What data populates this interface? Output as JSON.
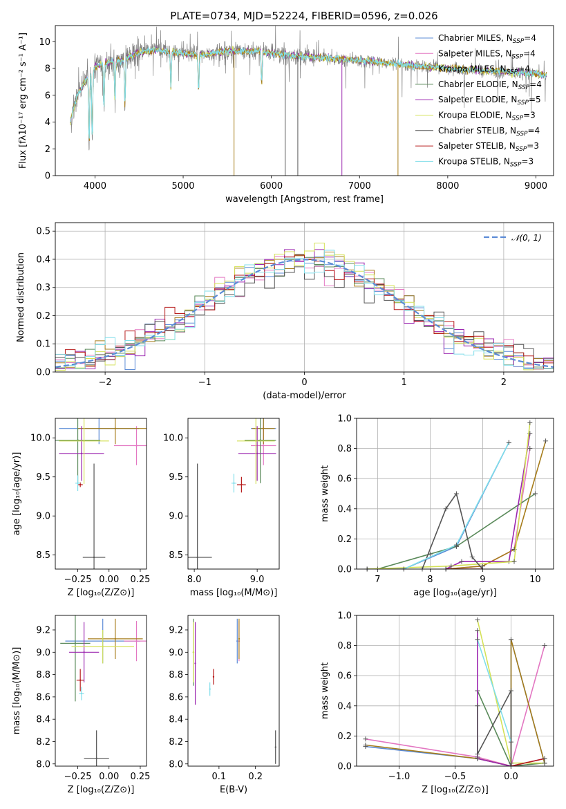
{
  "figure_title": "PLATE=0734, MJD=52224, FIBERID=0596, z=0.026",
  "models": [
    {
      "label": "Chabrier MILES, N",
      "sub": "SSP",
      "suffix": "=4",
      "color": "#5b8bd6"
    },
    {
      "label": "Salpeter MILES, N",
      "sub": "SSP",
      "suffix": "=4",
      "color": "#e377c2"
    },
    {
      "label": "Kroupa MILES, N",
      "sub": "SSP",
      "suffix": "=4",
      "color": "#a67c1a"
    },
    {
      "label": "Chabrier ELODIE, N",
      "sub": "SSP",
      "suffix": "=4",
      "color": "#5a8a5a"
    },
    {
      "label": "Salpeter ELODIE, N",
      "sub": "SSP",
      "suffix": "=5",
      "color": "#9c27b0"
    },
    {
      "label": "Kroupa ELODIE, N",
      "sub": "SSP",
      "suffix": "=3",
      "color": "#d4e157"
    },
    {
      "label": "Chabrier STELIB, N",
      "sub": "SSP",
      "suffix": "=4",
      "color": "#555555"
    },
    {
      "label": "Salpeter STELIB, N",
      "sub": "SSP",
      "suffix": "=3",
      "color": "#b71c1c"
    },
    {
      "label": "Kroupa STELIB, N",
      "sub": "SSP",
      "suffix": "=3",
      "color": "#80deea"
    }
  ],
  "chart_data": [
    {
      "id": "spectrum",
      "type": "line",
      "xlabel": "wavelength [Angstrom, rest frame]",
      "ylabel": "Flux [fλ10⁻¹⁷ erg cm⁻² s⁻¹ A⁻¹]",
      "xlim": [
        3550,
        9200
      ],
      "ylim": [
        0,
        11.2
      ],
      "xticks": [
        4000,
        5000,
        6000,
        7000,
        8000,
        9000
      ],
      "yticks": [
        0,
        2,
        4,
        6,
        8,
        10
      ],
      "data_line_color": "#808080",
      "model_color": "#80deea",
      "spectrum_shape": [
        [
          3720,
          4.0
        ],
        [
          3800,
          6.0
        ],
        [
          3900,
          7.2
        ],
        [
          4000,
          8.1
        ],
        [
          4100,
          8.4
        ],
        [
          4300,
          8.6
        ],
        [
          4500,
          9.2
        ],
        [
          4700,
          9.4
        ],
        [
          4900,
          9.2
        ],
        [
          5200,
          9.0
        ],
        [
          5500,
          9.3
        ],
        [
          5800,
          9.3
        ],
        [
          6200,
          9.0
        ],
        [
          6600,
          8.8
        ],
        [
          7000,
          8.6
        ],
        [
          7500,
          8.3
        ],
        [
          8000,
          8.0
        ],
        [
          8500,
          7.8
        ],
        [
          9000,
          7.6
        ],
        [
          9120,
          7.5
        ]
      ],
      "absorption_dips": [
        [
          3934,
          2.2
        ],
        [
          3969,
          2.5
        ],
        [
          4102,
          5.0
        ],
        [
          4227,
          5.5
        ],
        [
          4340,
          5.2
        ],
        [
          4861,
          6.5
        ],
        [
          5175,
          6.3
        ],
        [
          5890,
          6.8
        ]
      ],
      "sky_residual_drops": [
        5577,
        6157,
        6300,
        6800,
        7436
      ]
    },
    {
      "id": "residuals",
      "type": "area",
      "xlabel": "(data-model)/error",
      "ylabel": "Normed distribution",
      "xlim": [
        -2.5,
        2.5
      ],
      "ylim": [
        0,
        0.53
      ],
      "xticks": [
        -2,
        -1,
        0,
        1,
        2
      ],
      "yticks": [
        0,
        0.1,
        0.2,
        0.3,
        0.4,
        0.5
      ],
      "bin_width": 0.1,
      "histogram_type": "step",
      "legend": "𝒩(0, 1)",
      "reference_line_color": "#5b8bd6",
      "reference": "normal(0,1)"
    },
    {
      "id": "age_vs_z",
      "type": "scatter",
      "xlabel": "Z [log₁₀(Z/Z⊙)]",
      "ylabel": "age  [log₁₀(age/yr)]",
      "xlim": [
        -0.43,
        0.3
      ],
      "ylim": [
        8.32,
        10.25
      ],
      "xticks": [
        -0.25,
        0.0,
        0.25
      ],
      "yticks": [
        8.5,
        9.0,
        9.5,
        10.0
      ],
      "points": [
        {
          "m": 0,
          "x": -0.08,
          "y": 10.12,
          "xerr": 0.32,
          "yerr": 0.2
        },
        {
          "m": 1,
          "x": 0.22,
          "y": 9.9,
          "xerr": 0.18,
          "yerr": 0.25
        },
        {
          "m": 2,
          "x": 0.05,
          "y": 10.12,
          "xerr": 0.3,
          "yerr": 0.2
        },
        {
          "m": 3,
          "x": -0.25,
          "y": 9.97,
          "xerr": 0.18,
          "yerr": 0.55
        },
        {
          "m": 4,
          "x": -0.22,
          "y": 9.8,
          "xerr": 0.18,
          "yerr": 0.35
        },
        {
          "m": 5,
          "x": -0.2,
          "y": 9.96,
          "xerr": 0.2,
          "yerr": 0.55
        },
        {
          "m": 6,
          "x": -0.12,
          "y": 8.47,
          "xerr": 0.09,
          "yerr": 1.2
        },
        {
          "m": 7,
          "x": -0.23,
          "y": 9.4,
          "xerr": 0.02,
          "yerr": 0.03
        },
        {
          "m": 8,
          "x": -0.25,
          "y": 9.42,
          "xerr": 0.02,
          "yerr": 0.1
        }
      ]
    },
    {
      "id": "age_vs_mass",
      "type": "scatter",
      "xlabel": "mass [log₁₀(M/M⊙)]",
      "xlim": [
        7.9,
        9.35
      ],
      "ylim": [
        8.32,
        10.25
      ],
      "xticks": [
        8.0,
        9.0
      ],
      "yticks": [
        8.5,
        9.0,
        9.5,
        10.0
      ],
      "points": [
        {
          "m": 0,
          "x": 9.1,
          "y": 10.12,
          "xerr": 0.2,
          "yerr": 0.2
        },
        {
          "m": 1,
          "x": 9.1,
          "y": 9.9,
          "xerr": 0.2,
          "yerr": 0.25
        },
        {
          "m": 2,
          "x": 9.1,
          "y": 10.12,
          "xerr": 0.18,
          "yerr": 0.2
        },
        {
          "m": 3,
          "x": 9.05,
          "y": 9.97,
          "xerr": 0.25,
          "yerr": 0.55
        },
        {
          "m": 4,
          "x": 9.0,
          "y": 9.8,
          "xerr": 0.3,
          "yerr": 0.35
        },
        {
          "m": 5,
          "x": 8.98,
          "y": 9.96,
          "xerr": 0.3,
          "yerr": 0.55
        },
        {
          "m": 6,
          "x": 8.05,
          "y": 8.47,
          "xerr": 0.23,
          "yerr": 1.2
        },
        {
          "m": 7,
          "x": 8.75,
          "y": 9.4,
          "xerr": 0.07,
          "yerr": 0.1
        },
        {
          "m": 8,
          "x": 8.63,
          "y": 9.42,
          "xerr": 0.04,
          "yerr": 0.12
        }
      ]
    },
    {
      "id": "mass_weight_vs_age",
      "type": "line",
      "xlabel": "age  [log₁₀(age/yr)]",
      "ylabel": "mass weight",
      "xlim": [
        6.6,
        10.35
      ],
      "ylim": [
        0,
        1.0
      ],
      "xticks": [
        7,
        8,
        9,
        10
      ],
      "yticks": [
        0,
        0.2,
        0.4,
        0.6,
        0.8,
        1.0
      ],
      "series": [
        {
          "m": 0,
          "points": [
            [
              6.8,
              0.0
            ],
            [
              7.5,
              0.0
            ],
            [
              8.5,
              0.15
            ],
            [
              9.5,
              0.84
            ]
          ]
        },
        {
          "m": 1,
          "points": [
            [
              8.3,
              0.0
            ],
            [
              9.0,
              0.02
            ],
            [
              9.6,
              0.13
            ],
            [
              9.9,
              0.8
            ]
          ]
        },
        {
          "m": 2,
          "points": [
            [
              8.3,
              0.0
            ],
            [
              9.0,
              0.02
            ],
            [
              9.6,
              0.13
            ],
            [
              10.2,
              0.85
            ]
          ]
        },
        {
          "m": 3,
          "points": [
            [
              7.0,
              0.0
            ],
            [
              8.0,
              0.1
            ],
            [
              8.5,
              0.15
            ],
            [
              10.0,
              0.5
            ]
          ]
        },
        {
          "m": 4,
          "points": [
            [
              8.3,
              0.0
            ],
            [
              8.6,
              0.05
            ],
            [
              9.5,
              0.05
            ],
            [
              9.9,
              0.9
            ]
          ]
        },
        {
          "m": 5,
          "points": [
            [
              6.8,
              0.0
            ],
            [
              8.4,
              0.02
            ],
            [
              9.6,
              0.05
            ],
            [
              9.9,
              0.97
            ]
          ]
        },
        {
          "m": 6,
          "points": [
            [
              7.85,
              0.0
            ],
            [
              8.3,
              0.4
            ],
            [
              8.5,
              0.5
            ],
            [
              8.8,
              0.08
            ],
            [
              9.0,
              0.0
            ]
          ]
        },
        {
          "m": 7,
          "points": [
            [
              8.3,
              0.0
            ],
            [
              9.0,
              0.0
            ]
          ]
        },
        {
          "m": 8,
          "points": [
            [
              7.5,
              0.0
            ],
            [
              8.5,
              0.16
            ],
            [
              9.5,
              0.84
            ]
          ]
        }
      ]
    },
    {
      "id": "mass_vs_z",
      "type": "scatter",
      "xlabel": "Z [log₁₀(Z/Z⊙)]",
      "ylabel": "mass [log₁₀(M/M⊙)]",
      "xlim": [
        -0.43,
        0.3
      ],
      "ylim": [
        7.98,
        9.33
      ],
      "xticks": [
        -0.25,
        0.0,
        0.25
      ],
      "yticks": [
        8.0,
        8.2,
        8.4,
        8.6,
        8.8,
        9.0,
        9.2
      ],
      "points": [
        {
          "m": 0,
          "x": -0.05,
          "y": 9.1,
          "xerr": 0.3,
          "yerr": 0.2
        },
        {
          "m": 1,
          "x": 0.22,
          "y": 9.1,
          "xerr": 0.1,
          "yerr": 0.18
        },
        {
          "m": 2,
          "x": 0.05,
          "y": 9.12,
          "xerr": 0.22,
          "yerr": 0.18
        },
        {
          "m": 3,
          "x": -0.27,
          "y": 9.08,
          "xerr": 0.12,
          "yerr": 0.52
        },
        {
          "m": 4,
          "x": -0.2,
          "y": 9.0,
          "xerr": 0.12,
          "yerr": 0.27
        },
        {
          "m": 5,
          "x": -0.05,
          "y": 9.05,
          "xerr": 0.25,
          "yerr": 0.15
        },
        {
          "m": 6,
          "x": -0.1,
          "y": 8.05,
          "xerr": 0.1,
          "yerr": 0.25
        },
        {
          "m": 7,
          "x": -0.23,
          "y": 8.75,
          "xerr": 0.03,
          "yerr": 0.1
        },
        {
          "m": 8,
          "x": -0.22,
          "y": 8.63,
          "xerr": 0.02,
          "yerr": 0.06
        }
      ]
    },
    {
      "id": "mass_vs_ebv",
      "type": "scatter",
      "xlabel": "E(B-V)",
      "xlim": [
        0.015,
        0.265
      ],
      "ylim": [
        7.98,
        9.33
      ],
      "xticks": [
        0.1,
        0.2
      ],
      "yticks": [
        8.0,
        8.2,
        8.4,
        8.6,
        8.8,
        9.0,
        9.2
      ],
      "points": [
        {
          "m": 0,
          "x": 0.15,
          "y": 9.1,
          "yerr": 0.2
        },
        {
          "m": 1,
          "x": 0.155,
          "y": 9.1,
          "yerr": 0.18
        },
        {
          "m": 2,
          "x": 0.155,
          "y": 9.12,
          "yerr": 0.18
        },
        {
          "m": 3,
          "x": 0.03,
          "y": 9.0,
          "yerr": 0.3
        },
        {
          "m": 4,
          "x": 0.035,
          "y": 8.9,
          "yerr": 0.37
        },
        {
          "m": 5,
          "x": 0.03,
          "y": 9.0,
          "yerr": 0.27
        },
        {
          "m": 6,
          "x": 0.255,
          "y": 8.15,
          "yerr": 0.15
        },
        {
          "m": 7,
          "x": 0.085,
          "y": 8.78,
          "yerr": 0.07
        },
        {
          "m": 8,
          "x": 0.075,
          "y": 8.67,
          "yerr": 0.06
        }
      ]
    },
    {
      "id": "mass_weight_vs_z",
      "type": "line",
      "xlabel": "Z [log₁₀(Z/Z⊙)]",
      "ylabel": "mass weight",
      "xlim": [
        -1.38,
        0.38
      ],
      "ylim": [
        0,
        1.0
      ],
      "xticks": [
        -1.0,
        -0.5,
        0.0
      ],
      "yticks": [
        0,
        0.2,
        0.4,
        0.6,
        0.8,
        1.0
      ],
      "series": [
        {
          "m": 0,
          "points": [
            [
              -1.3,
              0.13
            ],
            [
              -0.3,
              0.05
            ],
            [
              0.0,
              0.0
            ],
            [
              0.0,
              0.84
            ],
            [
              0.3,
              0.02
            ]
          ]
        },
        {
          "m": 1,
          "points": [
            [
              -1.3,
              0.18
            ],
            [
              -0.3,
              0.06
            ],
            [
              0.0,
              0.0
            ],
            [
              0.3,
              0.8
            ]
          ]
        },
        {
          "m": 2,
          "points": [
            [
              -1.3,
              0.14
            ],
            [
              -0.3,
              0.05
            ],
            [
              0.0,
              0.0
            ],
            [
              0.0,
              0.84
            ],
            [
              0.3,
              0.02
            ]
          ]
        },
        {
          "m": 3,
          "points": [
            [
              -0.3,
              0.5
            ],
            [
              0.0,
              0.0
            ],
            [
              0.3,
              0.02
            ]
          ]
        },
        {
          "m": 4,
          "points": [
            [
              -0.3,
              0.9
            ],
            [
              -0.3,
              0.05
            ],
            [
              0.0,
              0.0
            ],
            [
              0.3,
              0.05
            ]
          ]
        },
        {
          "m": 5,
          "points": [
            [
              -0.3,
              0.97
            ],
            [
              0.0,
              0.02
            ],
            [
              0.3,
              0.02
            ]
          ]
        },
        {
          "m": 6,
          "points": [
            [
              -0.3,
              0.4
            ],
            [
              -0.3,
              0.08
            ],
            [
              0.0,
              0.5
            ],
            [
              0.0,
              0.0
            ]
          ]
        },
        {
          "m": 7,
          "points": [
            [
              0.0,
              0.0
            ],
            [
              0.3,
              0.05
            ]
          ]
        },
        {
          "m": 8,
          "points": [
            [
              -0.3,
              0.84
            ],
            [
              0.0,
              0.16
            ]
          ]
        }
      ]
    }
  ]
}
